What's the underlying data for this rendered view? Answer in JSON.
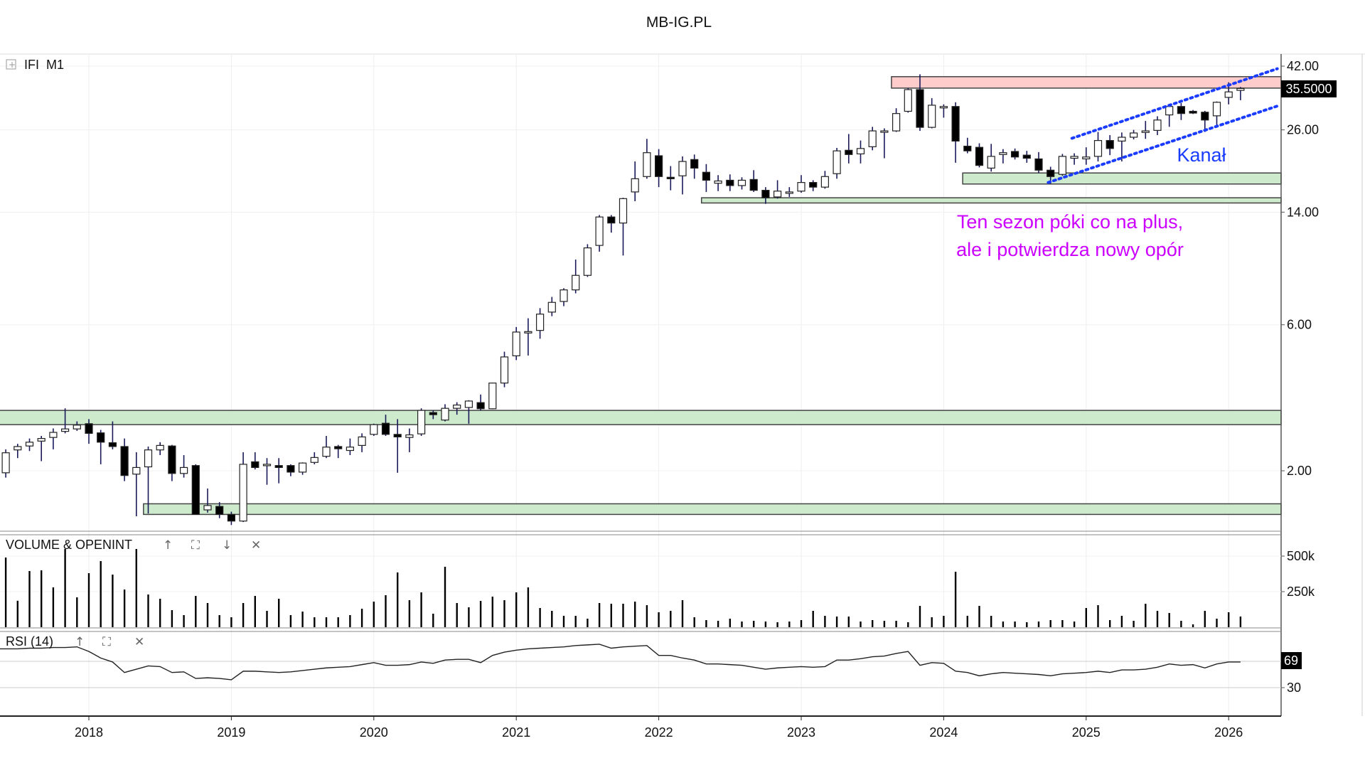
{
  "title": "MB-IG.PL",
  "main_panel": {
    "label": "IFI  M1",
    "expand_icon": "plus-box-icon",
    "last_price": "35.5000"
  },
  "volume_panel": {
    "label": "VOLUME & OPENINT",
    "ticks": [
      {
        "v": 500,
        "label": "500k"
      },
      {
        "v": 250,
        "label": "250k"
      }
    ],
    "icons": [
      "arrow-up-icon",
      "maximize-icon",
      "arrow-down-icon",
      "close-icon"
    ]
  },
  "rsi_panel": {
    "label": "RSI (14)",
    "ticks": [
      {
        "v": 30,
        "label": "30"
      }
    ],
    "last_value": "69",
    "icons": [
      "arrow-up-icon",
      "maximize-icon",
      "close-icon"
    ]
  },
  "annotations": {
    "channel": "Kanał",
    "comment_line1": "Ten sezon póki co na plus,",
    "comment_line2": "ale i potwierdza nowy opór"
  },
  "colors": {
    "resistance": "#ffcccc",
    "support": "#cdeacd",
    "channel": "#1a3cff",
    "comment": "#cc00ff",
    "channel_text": "#1a3cff"
  },
  "chart_data": {
    "type": "candlestick",
    "title": "MB-IG.PL",
    "interval": "monthly",
    "start": "2017-06",
    "y_scale": "log",
    "ylim": [
      1.2,
      44
    ],
    "price_ticks": [
      {
        "v": 42,
        "label": "42.00"
      },
      {
        "v": 26,
        "label": "26.00"
      },
      {
        "v": 14,
        "label": "14.00"
      },
      {
        "v": 6,
        "label": "6.00"
      },
      {
        "v": 2,
        "label": "2.00"
      }
    ],
    "x_ticks": [
      {
        "i": 7,
        "label": "2018"
      },
      {
        "i": 19,
        "label": "2019"
      },
      {
        "i": 31,
        "label": "2020"
      },
      {
        "i": 43,
        "label": "2021"
      },
      {
        "i": 55,
        "label": "2022"
      },
      {
        "i": 67,
        "label": "2023"
      },
      {
        "i": 79,
        "label": "2024"
      },
      {
        "i": 91,
        "label": "2025"
      },
      {
        "i": 103,
        "label": "2026"
      }
    ],
    "ohlc": [
      [
        1.97,
        2.35,
        1.9,
        2.29
      ],
      [
        2.34,
        2.45,
        2.2,
        2.4
      ],
      [
        2.41,
        2.55,
        2.32,
        2.48
      ],
      [
        2.5,
        2.6,
        2.15,
        2.55
      ],
      [
        2.57,
        2.75,
        2.35,
        2.67
      ],
      [
        2.69,
        3.2,
        2.65,
        2.74
      ],
      [
        2.74,
        2.9,
        2.7,
        2.82
      ],
      [
        2.85,
        2.95,
        2.45,
        2.65
      ],
      [
        2.66,
        2.72,
        2.1,
        2.48
      ],
      [
        2.47,
        2.9,
        2.35,
        2.4
      ],
      [
        2.4,
        2.55,
        1.85,
        1.93
      ],
      [
        1.95,
        2.3,
        1.42,
        2.05
      ],
      [
        2.06,
        2.4,
        1.45,
        2.34
      ],
      [
        2.34,
        2.48,
        2.25,
        2.42
      ],
      [
        2.41,
        2.43,
        1.85,
        1.96
      ],
      [
        1.96,
        2.25,
        1.9,
        2.05
      ],
      [
        2.08,
        2.1,
        1.44,
        1.44
      ],
      [
        1.49,
        1.75,
        1.46,
        1.54
      ],
      [
        1.53,
        1.58,
        1.4,
        1.44
      ],
      [
        1.44,
        1.47,
        1.33,
        1.37
      ],
      [
        1.37,
        2.3,
        1.36,
        2.1
      ],
      [
        2.14,
        2.3,
        2.02,
        2.05
      ],
      [
        2.08,
        2.2,
        1.8,
        2.1
      ],
      [
        2.08,
        2.2,
        1.82,
        2.05
      ],
      [
        2.08,
        2.1,
        1.92,
        1.98
      ],
      [
        1.98,
        2.13,
        1.94,
        2.12
      ],
      [
        2.13,
        2.3,
        2.1,
        2.21
      ],
      [
        2.23,
        2.6,
        2.2,
        2.39
      ],
      [
        2.4,
        2.43,
        2.2,
        2.36
      ],
      [
        2.33,
        2.55,
        2.25,
        2.39
      ],
      [
        2.42,
        2.65,
        2.3,
        2.58
      ],
      [
        2.63,
        2.85,
        2.6,
        2.83
      ],
      [
        2.86,
        3.05,
        2.6,
        2.63
      ],
      [
        2.63,
        2.95,
        1.97,
        2.58
      ],
      [
        2.57,
        2.75,
        2.3,
        2.62
      ],
      [
        2.64,
        3.2,
        2.6,
        3.15
      ],
      [
        3.1,
        3.15,
        2.95,
        3.05
      ],
      [
        2.93,
        3.3,
        2.9,
        3.2
      ],
      [
        3.2,
        3.35,
        3.05,
        3.28
      ],
      [
        3.22,
        3.4,
        2.85,
        3.38
      ],
      [
        3.34,
        3.55,
        3.15,
        3.19
      ],
      [
        3.19,
        3.88,
        3.18,
        3.87
      ],
      [
        3.87,
        4.9,
        3.75,
        4.71
      ],
      [
        4.75,
        5.9,
        4.6,
        5.68
      ],
      [
        5.68,
        6.3,
        4.76,
        5.7
      ],
      [
        5.75,
        6.8,
        5.4,
        6.5
      ],
      [
        6.6,
        7.4,
        6.4,
        7.1
      ],
      [
        7.15,
        7.9,
        6.9,
        7.8
      ],
      [
        7.8,
        9.8,
        7.6,
        8.7
      ],
      [
        8.7,
        11.0,
        8.6,
        10.7
      ],
      [
        10.9,
        13.7,
        10.4,
        13.5
      ],
      [
        13.5,
        13.7,
        12.0,
        12.9
      ],
      [
        12.9,
        15.6,
        10.1,
        15.5
      ],
      [
        16.3,
        20.5,
        15.2,
        18.0
      ],
      [
        18.3,
        24.3,
        18.0,
        21.9
      ],
      [
        21.4,
        22.5,
        16.9,
        18.3
      ],
      [
        18.2,
        19.8,
        16.5,
        18.0
      ],
      [
        18.4,
        21.3,
        16.0,
        20.5
      ],
      [
        20.8,
        21.6,
        18.0,
        19.5
      ],
      [
        18.9,
        20.1,
        16.3,
        17.8
      ],
      [
        17.4,
        18.5,
        16.4,
        17.7
      ],
      [
        17.8,
        18.6,
        16.4,
        17.1
      ],
      [
        17.1,
        18.2,
        16.6,
        17.8
      ],
      [
        17.9,
        19.2,
        16.3,
        16.5
      ],
      [
        16.5,
        16.9,
        14.9,
        15.6
      ],
      [
        15.7,
        17.8,
        15.5,
        16.4
      ],
      [
        16.3,
        16.9,
        15.7,
        16.3
      ],
      [
        16.4,
        18.5,
        16.2,
        17.5
      ],
      [
        17.5,
        17.8,
        16.4,
        16.9
      ],
      [
        16.9,
        19.1,
        16.7,
        18.3
      ],
      [
        18.7,
        22.7,
        18.0,
        22.2
      ],
      [
        22.3,
        25.2,
        20.2,
        21.6
      ],
      [
        21.7,
        24.0,
        20.2,
        22.6
      ],
      [
        22.9,
        26.6,
        22.3,
        25.8
      ],
      [
        25.6,
        26.3,
        21.0,
        25.8
      ],
      [
        25.8,
        30.6,
        25.6,
        29.4
      ],
      [
        29.9,
        35.6,
        29.6,
        35.2
      ],
      [
        35.2,
        39.5,
        25.8,
        26.5
      ],
      [
        26.5,
        33.0,
        26.3,
        31.3
      ],
      [
        31.0,
        31.5,
        28.5,
        31.0
      ],
      [
        31.0,
        32.0,
        20.3,
        23.9
      ],
      [
        23.0,
        24.5,
        21.8,
        22.2
      ],
      [
        22.8,
        23.5,
        19.6,
        19.9
      ],
      [
        19.5,
        23.4,
        19.0,
        21.3
      ],
      [
        21.6,
        22.5,
        20.2,
        21.9
      ],
      [
        22.1,
        22.6,
        20.8,
        21.2
      ],
      [
        21.5,
        22.2,
        20.3,
        21.0
      ],
      [
        20.9,
        22.0,
        18.8,
        19.2
      ],
      [
        19.2,
        19.7,
        17.3,
        18.3
      ],
      [
        18.6,
        21.7,
        18.4,
        21.3
      ],
      [
        21.0,
        21.8,
        20.0,
        21.3
      ],
      [
        20.9,
        22.8,
        20.0,
        21.2
      ],
      [
        21.3,
        25.6,
        20.5,
        24.0
      ],
      [
        24.0,
        25.0,
        21.5,
        22.6
      ],
      [
        23.9,
        25.5,
        20.5,
        24.6
      ],
      [
        24.6,
        26.0,
        24.2,
        25.4
      ],
      [
        25.5,
        27.8,
        24.3,
        25.8
      ],
      [
        25.9,
        28.8,
        25.0,
        28.0
      ],
      [
        29.1,
        31.6,
        26.6,
        31.0
      ],
      [
        31.0,
        31.8,
        28.0,
        29.4
      ],
      [
        29.9,
        30.2,
        29.3,
        29.5
      ],
      [
        29.7,
        30.0,
        25.6,
        28.0
      ],
      [
        28.9,
        32.2,
        26.8,
        32.0
      ],
      [
        33.2,
        37.2,
        31.5,
        34.6
      ],
      [
        35.0,
        35.9,
        32.5,
        35.5
      ]
    ],
    "volume_k": [
      490,
      186,
      395,
      400,
      280,
      550,
      210,
      380,
      465,
      370,
      265,
      550,
      230,
      200,
      120,
      85,
      220,
      170,
      85,
      70,
      170,
      220,
      115,
      200,
      85,
      110,
      70,
      70,
      70,
      85,
      130,
      180,
      225,
      385,
      190,
      245,
      95,
      425,
      170,
      140,
      185,
      215,
      190,
      245,
      280,
      135,
      115,
      80,
      80,
      60,
      170,
      165,
      165,
      180,
      155,
      105,
      115,
      190,
      70,
      50,
      45,
      60,
      40,
      45,
      40,
      35,
      40,
      50,
      115,
      80,
      75,
      75,
      40,
      50,
      45,
      45,
      35,
      150,
      70,
      80,
      390,
      80,
      150,
      80,
      40,
      40,
      35,
      40,
      50,
      50,
      40,
      135,
      155,
      50,
      80,
      45,
      165,
      115,
      100,
      45,
      20,
      115,
      60,
      105,
      75
    ],
    "rsi": [
      89,
      89,
      90,
      90,
      91,
      91,
      92,
      85,
      75,
      69,
      53,
      58,
      63,
      62,
      53,
      54,
      44,
      45,
      44,
      42,
      55,
      55,
      54,
      53,
      54,
      56,
      58,
      60,
      61,
      62,
      65,
      68,
      64,
      64,
      65,
      69,
      67,
      72,
      73,
      73,
      68,
      79,
      84,
      87,
      89,
      90,
      91,
      92,
      94,
      95,
      96,
      90,
      92,
      93,
      94,
      79,
      79,
      75,
      72,
      66,
      66,
      65,
      64,
      61,
      58,
      60,
      61,
      62,
      61,
      62,
      72,
      72,
      74,
      77,
      78,
      82,
      85,
      64,
      68,
      67,
      55,
      53,
      48,
      51,
      53,
      52,
      51,
      50,
      48,
      51,
      52,
      53,
      55,
      53,
      57,
      57,
      58,
      61,
      66,
      64,
      65,
      60,
      66,
      69,
      69
    ],
    "zones": [
      {
        "type": "resistance",
        "from_i": 74.6,
        "low": 35.6,
        "high": 38.8
      },
      {
        "type": "support",
        "from_i": 80.6,
        "low": 17.3,
        "high": 18.8
      },
      {
        "type": "support",
        "from_i": 58.6,
        "low": 15.0,
        "high": 15.6
      },
      {
        "type": "support",
        "from_i": -0.6,
        "low": 2.83,
        "high": 3.15
      },
      {
        "type": "support",
        "from_i": 11.6,
        "low": 1.44,
        "high": 1.56
      }
    ],
    "channel_lines": [
      {
        "name": "upper",
        "from": [
          89.8,
          24.4
        ],
        "to": [
          107.1,
          41.2
        ]
      },
      {
        "name": "lower",
        "from": [
          87.8,
          17.5
        ],
        "to": [
          107.1,
          31.1
        ]
      }
    ]
  }
}
